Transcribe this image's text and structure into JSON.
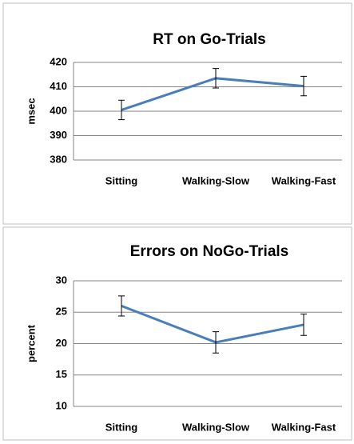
{
  "chart_data": [
    {
      "type": "line",
      "title": "RT on Go-Trials",
      "y_label": "msec",
      "categories": [
        "Sitting",
        "Walking-Slow",
        "Walking-Fast"
      ],
      "values": [
        400.5,
        413.5,
        410.3
      ],
      "errors": [
        4,
        4,
        4
      ],
      "color": "#4a7ebb",
      "ylim": [
        380,
        420
      ],
      "yticks": [
        380,
        390,
        400,
        410,
        420
      ],
      "grid": true
    },
    {
      "type": "line",
      "title": "Errors on NoGo-Trials",
      "y_label": "percent",
      "categories": [
        "Sitting",
        "Walking-Slow",
        "Walking-Fast"
      ],
      "values": [
        26,
        20.2,
        23
      ],
      "errors": [
        1.6,
        1.7,
        1.7
      ],
      "color": "#4a7ebb",
      "ylim": [
        10,
        30
      ],
      "yticks": [
        10,
        15,
        20,
        25,
        30
      ],
      "grid": true
    }
  ]
}
